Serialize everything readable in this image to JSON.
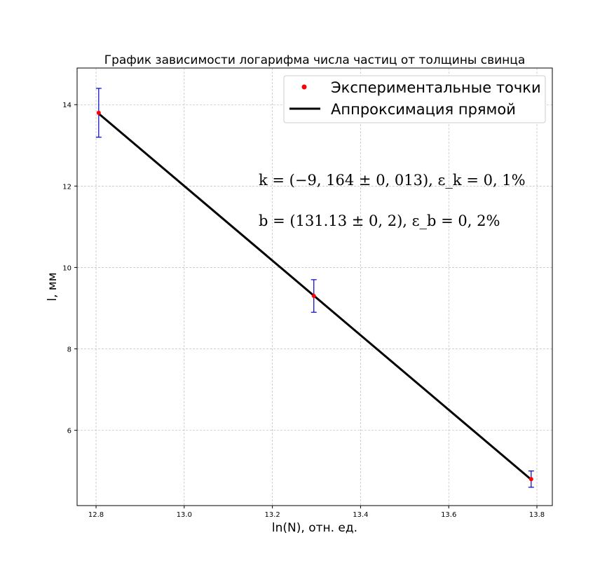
{
  "chart_data": {
    "type": "scatter",
    "title": "График зависимости логарифма числа частиц от толщины свинца",
    "xlabel": "ln(N), отн. ед.",
    "ylabel": "l, мм",
    "xlim": [
      12.757,
      13.835
    ],
    "ylim": [
      4.15,
      14.9
    ],
    "xticks": [
      "12.8",
      "13.0",
      "13.2",
      "13.4",
      "13.6",
      "13.8"
    ],
    "yticks": [
      "6",
      "8",
      "10",
      "12",
      "14"
    ],
    "grid": true,
    "legend_position": "top-right",
    "series": [
      {
        "name": "Экспериментальные точки",
        "kind": "points",
        "color": "#ff0000",
        "errorbar_color": "#0000cc",
        "points": [
          {
            "x": 12.806,
            "y": 13.8,
            "yerr": 0.6
          },
          {
            "x": 13.294,
            "y": 9.3,
            "yerr": 0.4
          },
          {
            "x": 13.787,
            "y": 4.8,
            "yerr": 0.2
          }
        ]
      },
      {
        "name": "Аппроксимация прямой",
        "kind": "line",
        "color": "#000000",
        "x": [
          12.806,
          13.787
        ],
        "y": [
          13.78,
          4.79
        ]
      }
    ],
    "annotations": [
      "k = (−9, 164 ± 0, 013),  ε_k = 0, 1%",
      "b = (131.13 ± 0, 2),  ε_b = 0, 2%"
    ]
  }
}
